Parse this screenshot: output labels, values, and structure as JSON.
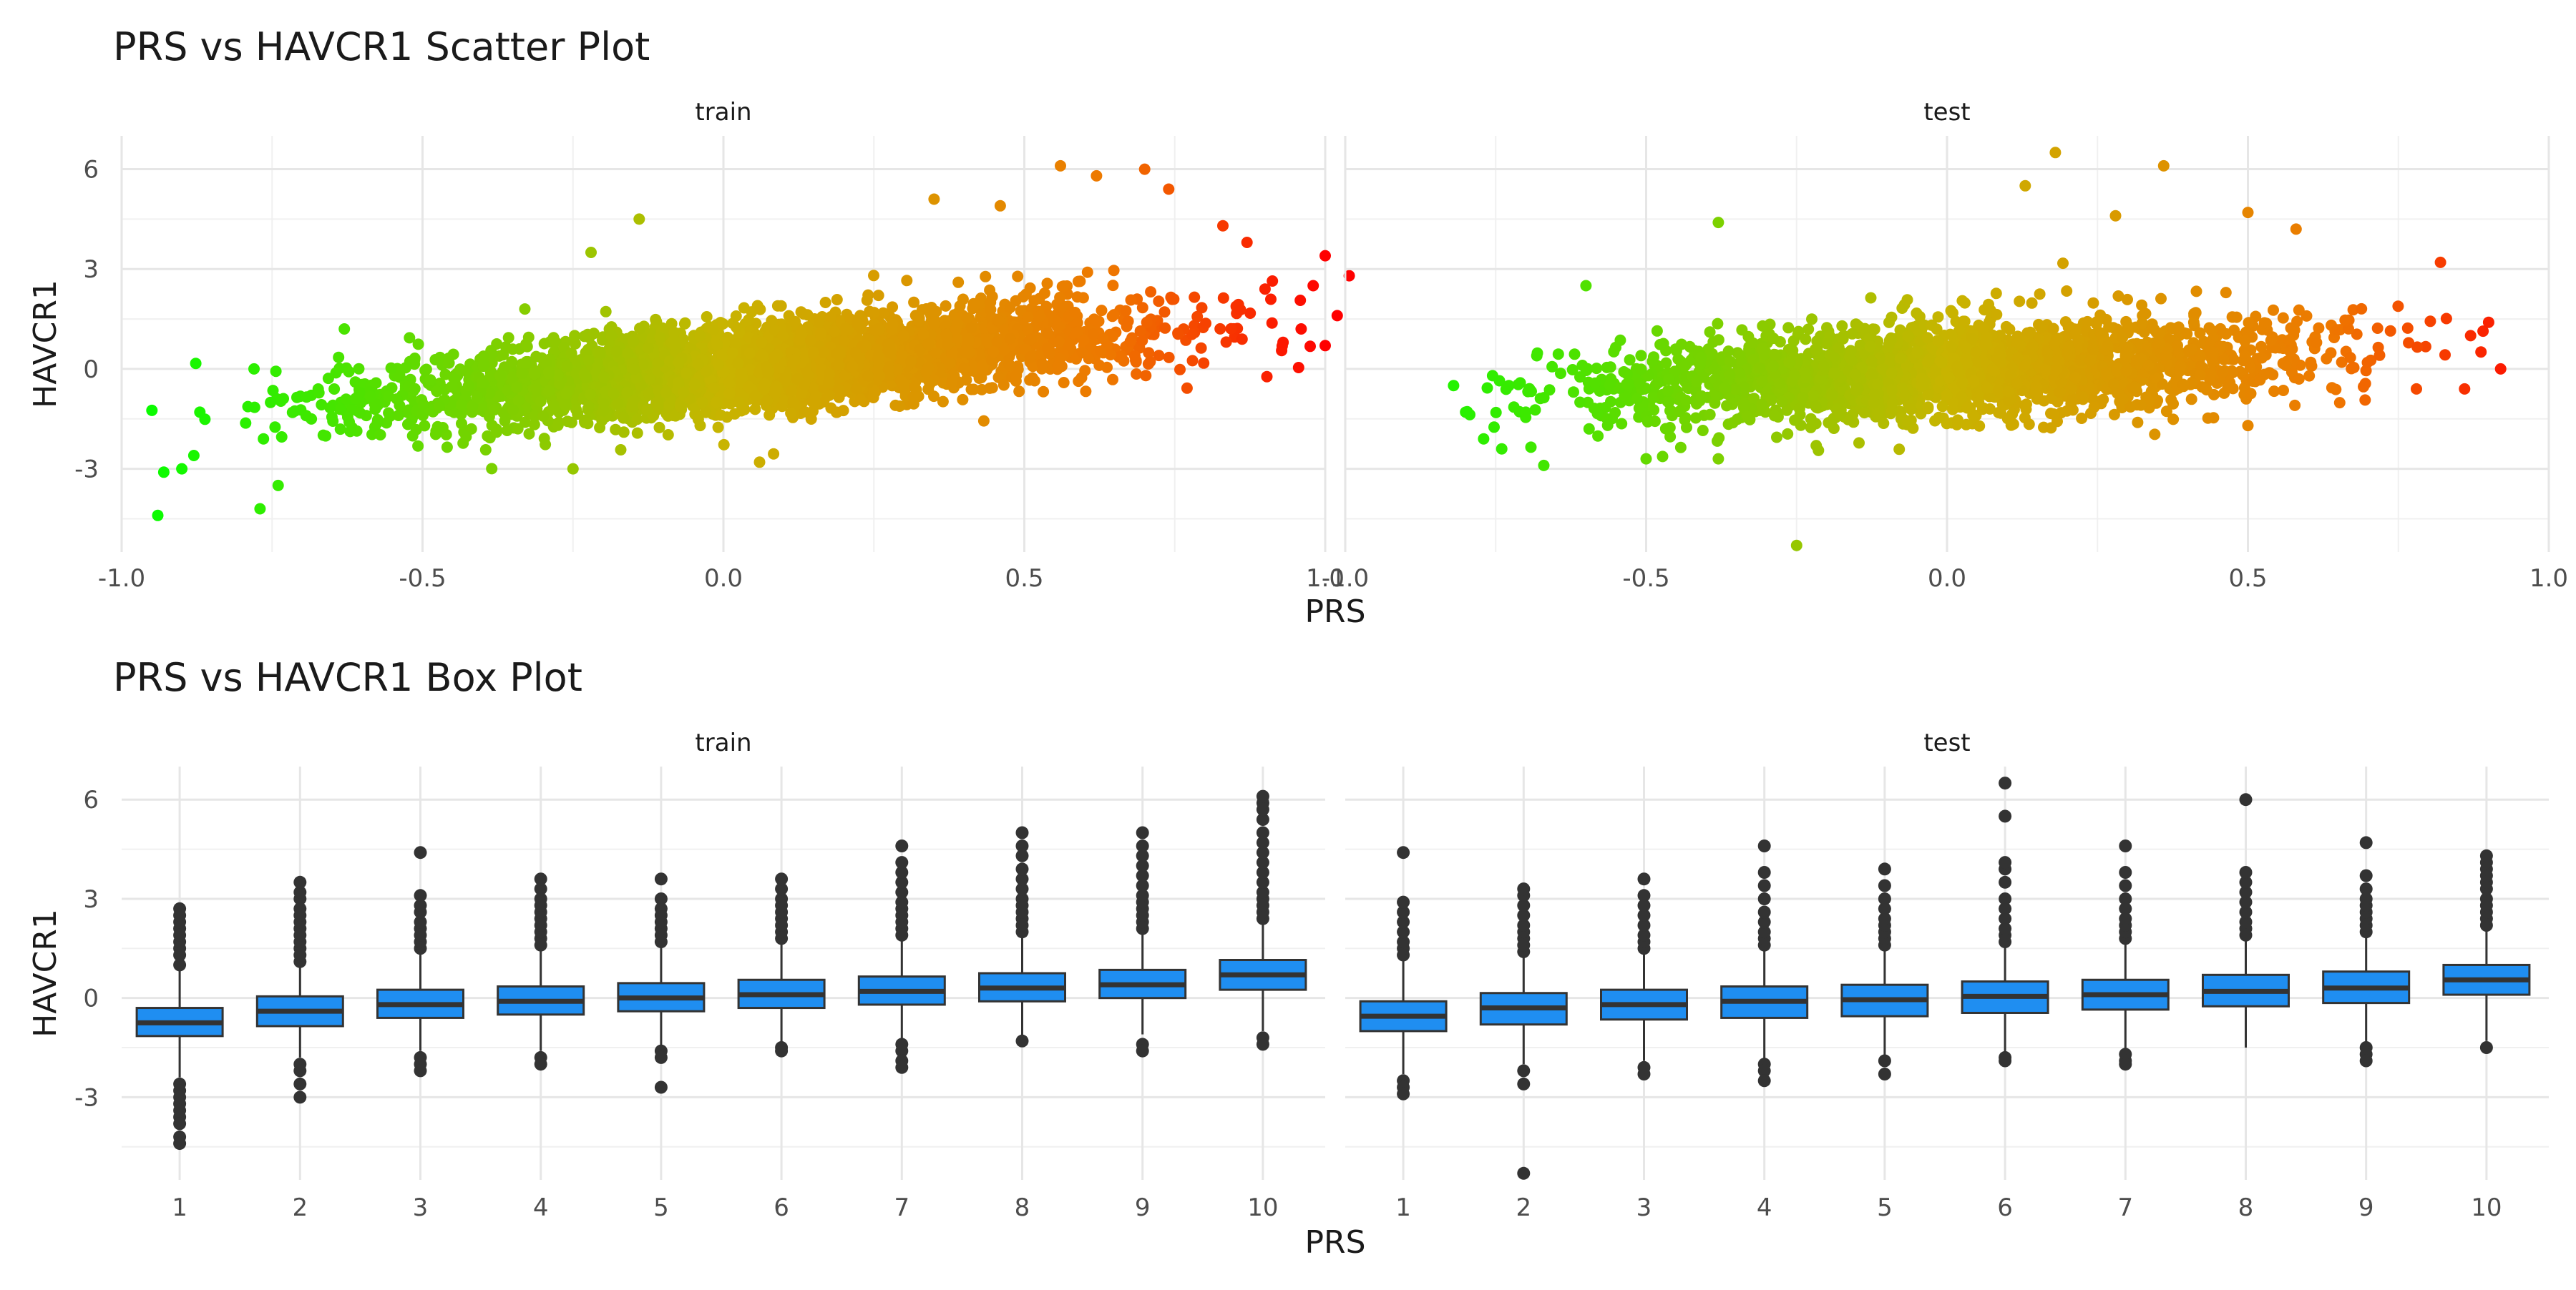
{
  "chart_data": [
    {
      "type": "scatter",
      "title": "PRS vs HAVCR1 Scatter Plot",
      "xlabel": "PRS",
      "ylabel": "HAVCR1",
      "facets": [
        "train",
        "test"
      ],
      "xlim": [
        -1.0,
        1.0
      ],
      "ylim": [
        -5.5,
        7.0
      ],
      "xticks": [
        "-1.0",
        "-0.5",
        "0.0",
        "0.5",
        "1.0"
      ],
      "yticks": [
        "-3",
        "0",
        "3",
        "6"
      ],
      "grid": true,
      "color_gradient": {
        "low": "#00ff00",
        "mid": "#c8b400",
        "high": "#ff0000",
        "mapped_to": "PRS"
      },
      "panels": [
        {
          "facet": "train",
          "trend": {
            "slope": 1.7,
            "intercept": 0.0
          },
          "x_range": [
            -0.95,
            1.02
          ],
          "highlight_points": [
            [
              -0.94,
              -4.4
            ],
            [
              -0.93,
              -3.1
            ],
            [
              -0.9,
              -3.0
            ],
            [
              -0.88,
              -2.6
            ],
            [
              -0.87,
              -1.3
            ],
            [
              -0.77,
              -4.2
            ],
            [
              -0.74,
              -3.5
            ],
            [
              -0.78,
              0.0
            ],
            [
              -0.63,
              1.2
            ],
            [
              -0.33,
              1.8
            ],
            [
              -0.22,
              3.5
            ],
            [
              -0.14,
              4.5
            ],
            [
              0.06,
              -2.8
            ],
            [
              -0.25,
              -3.0
            ],
            [
              0.35,
              5.1
            ],
            [
              0.46,
              4.9
            ],
            [
              0.56,
              6.1
            ],
            [
              0.62,
              5.8
            ],
            [
              0.7,
              6.0
            ],
            [
              0.74,
              5.4
            ],
            [
              0.83,
              4.3
            ],
            [
              0.87,
              3.8
            ],
            [
              0.9,
              2.4
            ],
            [
              0.96,
              1.2
            ],
            [
              0.98,
              2.5
            ],
            [
              1.0,
              3.4
            ],
            [
              1.02,
              1.6
            ],
            [
              1.04,
              2.8
            ],
            [
              1.0,
              0.7
            ],
            [
              0.93,
              0.8
            ]
          ]
        },
        {
          "facet": "test",
          "trend": {
            "slope": 0.9,
            "intercept": -0.05
          },
          "x_range": [
            -0.8,
            0.92
          ],
          "highlight_points": [
            [
              -0.82,
              -0.5
            ],
            [
              -0.8,
              -1.3
            ],
            [
              -0.77,
              -2.1
            ],
            [
              -0.74,
              -2.4
            ],
            [
              -0.7,
              -1.3
            ],
            [
              -0.67,
              -2.9
            ],
            [
              -0.6,
              2.5
            ],
            [
              -0.5,
              -2.7
            ],
            [
              -0.38,
              -2.7
            ],
            [
              -0.38,
              4.4
            ],
            [
              -0.25,
              -5.3
            ],
            [
              0.18,
              6.5
            ],
            [
              0.13,
              5.5
            ],
            [
              0.36,
              6.1
            ],
            [
              0.28,
              4.6
            ],
            [
              0.5,
              4.7
            ],
            [
              0.58,
              4.2
            ],
            [
              0.82,
              3.2
            ],
            [
              0.87,
              1.0
            ],
            [
              0.9,
              1.4
            ],
            [
              0.92,
              0.0
            ],
            [
              0.86,
              -0.6
            ],
            [
              0.78,
              -0.6
            ],
            [
              0.5,
              -1.7
            ]
          ]
        }
      ]
    },
    {
      "type": "box",
      "title": "PRS vs HAVCR1 Box Plot",
      "xlabel": "PRS",
      "ylabel": "HAVCR1",
      "facets": [
        "train",
        "test"
      ],
      "categories": [
        "1",
        "2",
        "3",
        "4",
        "5",
        "6",
        "7",
        "8",
        "9",
        "10"
      ],
      "ylim": [
        -5.5,
        7.0
      ],
      "yticks": [
        "-3",
        "0",
        "3",
        "6"
      ],
      "grid": true,
      "box_color": "#1f8ef1",
      "outline_color": "#333333",
      "panels": [
        {
          "facet": "train",
          "boxes": [
            {
              "q1": -1.15,
              "median": -0.75,
              "q3": -0.3,
              "lower": -2.4,
              "upper": 0.9,
              "outliers_high": [
                1.0,
                1.3,
                1.5,
                1.7,
                1.9,
                2.1,
                2.3,
                2.5,
                2.7
              ],
              "outliers_low": [
                -2.6,
                -2.8,
                -3.0,
                -3.2,
                -3.4,
                -3.6,
                -3.8,
                -4.2,
                -4.4
              ]
            },
            {
              "q1": -0.85,
              "median": -0.4,
              "q3": 0.05,
              "lower": -1.8,
              "upper": 1.0,
              "outliers_high": [
                1.1,
                1.3,
                1.5,
                1.7,
                1.9,
                2.1,
                2.3,
                2.5,
                2.7,
                3.0,
                3.2,
                3.5
              ],
              "outliers_low": [
                -2.0,
                -2.2,
                -2.6,
                -3.0
              ]
            },
            {
              "q1": -0.6,
              "median": -0.2,
              "q3": 0.25,
              "lower": -1.6,
              "upper": 1.4,
              "outliers_high": [
                1.5,
                1.7,
                1.9,
                2.1,
                2.3,
                2.6,
                2.8,
                3.1,
                4.4
              ],
              "outliers_low": [
                -1.8,
                -2.0,
                -2.2
              ]
            },
            {
              "q1": -0.5,
              "median": -0.1,
              "q3": 0.35,
              "lower": -1.6,
              "upper": 1.5,
              "outliers_high": [
                1.6,
                1.8,
                2.0,
                2.2,
                2.4,
                2.6,
                2.8,
                3.0,
                3.3,
                3.6
              ],
              "outliers_low": [
                -1.8,
                -2.0
              ]
            },
            {
              "q1": -0.4,
              "median": 0.0,
              "q3": 0.45,
              "lower": -1.5,
              "upper": 1.6,
              "outliers_high": [
                1.7,
                1.9,
                2.1,
                2.3,
                2.5,
                2.7,
                3.0,
                3.6
              ],
              "outliers_low": [
                -1.6,
                -1.8,
                -2.7
              ]
            },
            {
              "q1": -0.3,
              "median": 0.1,
              "q3": 0.55,
              "lower": -1.4,
              "upper": 1.7,
              "outliers_high": [
                1.8,
                2.0,
                2.2,
                2.4,
                2.6,
                2.8,
                3.0,
                3.3,
                3.6
              ],
              "outliers_low": [
                -1.5,
                -1.6
              ]
            },
            {
              "q1": -0.2,
              "median": 0.2,
              "q3": 0.65,
              "lower": -1.3,
              "upper": 1.8,
              "outliers_high": [
                1.9,
                2.1,
                2.3,
                2.5,
                2.7,
                2.9,
                3.2,
                3.5,
                3.8,
                4.1,
                4.6
              ],
              "outliers_low": [
                -1.4,
                -1.6,
                -1.9,
                -2.1
              ]
            },
            {
              "q1": -0.1,
              "median": 0.3,
              "q3": 0.75,
              "lower": -1.2,
              "upper": 1.9,
              "outliers_high": [
                2.0,
                2.2,
                2.4,
                2.6,
                2.8,
                3.0,
                3.3,
                3.6,
                3.9,
                4.3,
                4.6,
                5.0
              ],
              "outliers_low": [
                -1.3
              ]
            },
            {
              "q1": 0.0,
              "median": 0.4,
              "q3": 0.85,
              "lower": -1.1,
              "upper": 2.0,
              "outliers_high": [
                2.1,
                2.3,
                2.5,
                2.7,
                2.9,
                3.1,
                3.4,
                3.7,
                4.0,
                4.3,
                4.6,
                5.0
              ],
              "outliers_low": [
                -1.4,
                -1.6
              ]
            },
            {
              "q1": 0.25,
              "median": 0.7,
              "q3": 1.15,
              "lower": -1.0,
              "upper": 2.3,
              "outliers_high": [
                2.4,
                2.6,
                2.8,
                3.0,
                3.2,
                3.5,
                3.8,
                4.1,
                4.4,
                4.7,
                5.0,
                5.4,
                5.7,
                5.9,
                6.1
              ],
              "outliers_low": [
                -1.2,
                -1.4
              ]
            }
          ]
        },
        {
          "facet": "test",
          "boxes": [
            {
              "q1": -1.0,
              "median": -0.55,
              "q3": -0.1,
              "lower": -2.3,
              "upper": 1.2,
              "outliers_high": [
                1.3,
                1.5,
                1.7,
                2.0,
                2.3,
                2.6,
                2.9,
                4.4
              ],
              "outliers_low": [
                -2.5,
                -2.7,
                -2.9
              ]
            },
            {
              "q1": -0.8,
              "median": -0.3,
              "q3": 0.15,
              "lower": -2.0,
              "upper": 1.3,
              "outliers_high": [
                1.4,
                1.6,
                1.8,
                2.0,
                2.2,
                2.5,
                2.8,
                3.1,
                3.3
              ],
              "outliers_low": [
                -2.2,
                -2.6,
                -5.3
              ]
            },
            {
              "q1": -0.65,
              "median": -0.2,
              "q3": 0.25,
              "lower": -1.9,
              "upper": 1.4,
              "outliers_high": [
                1.5,
                1.7,
                1.9,
                2.2,
                2.5,
                2.8,
                3.1,
                3.6
              ],
              "outliers_low": [
                -2.1,
                -2.3
              ]
            },
            {
              "q1": -0.6,
              "median": -0.1,
              "q3": 0.35,
              "lower": -1.9,
              "upper": 1.5,
              "outliers_high": [
                1.6,
                1.8,
                2.0,
                2.3,
                2.6,
                3.0,
                3.4,
                3.8,
                4.6
              ],
              "outliers_low": [
                -2.0,
                -2.2,
                -2.5
              ]
            },
            {
              "q1": -0.55,
              "median": -0.05,
              "q3": 0.4,
              "lower": -1.8,
              "upper": 1.5,
              "outliers_high": [
                1.6,
                1.8,
                2.0,
                2.2,
                2.4,
                2.7,
                3.0,
                3.4,
                3.9
              ],
              "outliers_low": [
                -1.9,
                -2.3
              ]
            },
            {
              "q1": -0.45,
              "median": 0.05,
              "q3": 0.5,
              "lower": -1.7,
              "upper": 1.6,
              "outliers_high": [
                1.7,
                1.9,
                2.1,
                2.4,
                2.7,
                3.0,
                3.5,
                3.9,
                4.1,
                5.5,
                6.5
              ],
              "outliers_low": [
                -1.8,
                -1.9
              ]
            },
            {
              "q1": -0.35,
              "median": 0.1,
              "q3": 0.55,
              "lower": -1.6,
              "upper": 1.7,
              "outliers_high": [
                1.8,
                2.0,
                2.2,
                2.4,
                2.7,
                3.0,
                3.4,
                3.8,
                4.6
              ],
              "outliers_low": [
                -1.7,
                -1.9,
                -2.0
              ]
            },
            {
              "q1": -0.25,
              "median": 0.2,
              "q3": 0.7,
              "lower": -1.5,
              "upper": 1.8,
              "outliers_high": [
                1.9,
                2.1,
                2.3,
                2.6,
                2.9,
                3.2,
                3.5,
                3.8,
                6.0
              ],
              "outliers_low": []
            },
            {
              "q1": -0.15,
              "median": 0.3,
              "q3": 0.8,
              "lower": -1.4,
              "upper": 1.9,
              "outliers_high": [
                2.0,
                2.2,
                2.4,
                2.6,
                2.8,
                3.0,
                3.3,
                3.7,
                4.7
              ],
              "outliers_low": [
                -1.5,
                -1.7,
                -1.9
              ]
            },
            {
              "q1": 0.1,
              "median": 0.55,
              "q3": 1.0,
              "lower": -1.3,
              "upper": 2.1,
              "outliers_high": [
                2.2,
                2.4,
                2.6,
                2.8,
                3.0,
                3.3,
                3.5,
                3.7,
                3.9,
                4.1,
                4.3
              ],
              "outliers_low": [
                -1.5
              ]
            }
          ]
        }
      ]
    }
  ]
}
